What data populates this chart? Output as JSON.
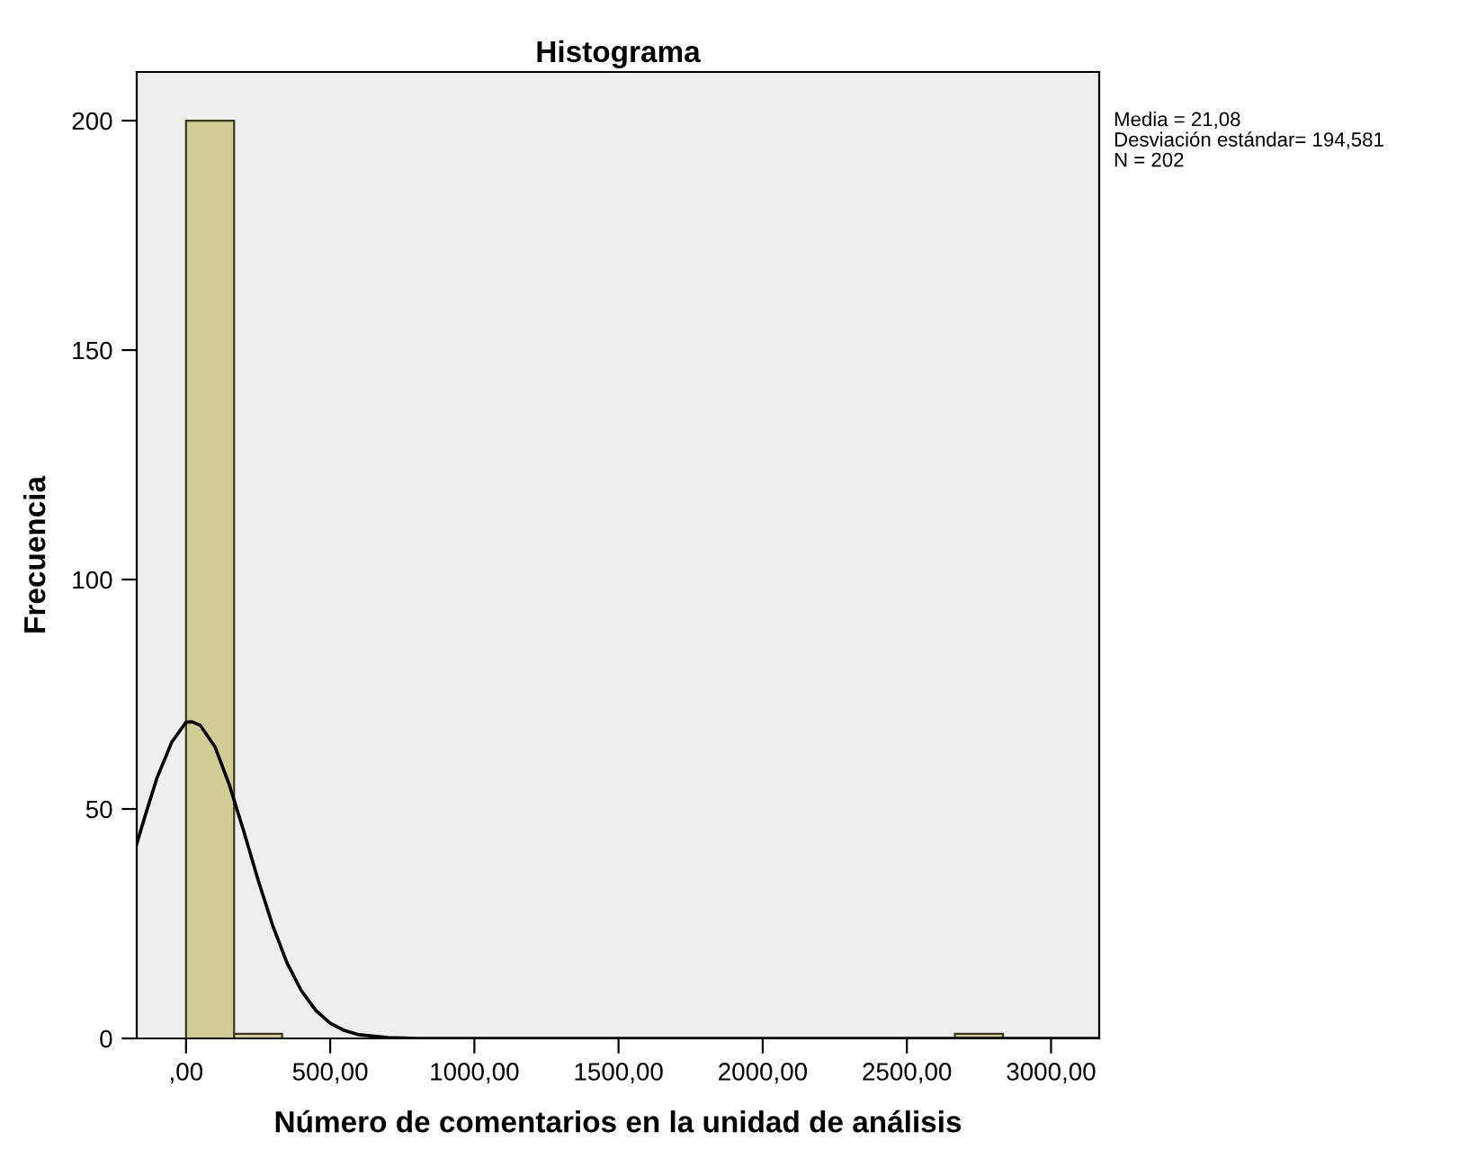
{
  "chart_data": {
    "type": "histogram",
    "title": "Histograma",
    "xlabel": "Número de comentarios en la unidad de análisis",
    "ylabel": "Frecuencia",
    "bins": [
      0,
      166.67,
      333.33,
      500,
      666.67,
      833.33,
      1000,
      1166.67,
      1333.33,
      1500,
      1666.67,
      1833.33,
      2000,
      2166.67,
      2333.33,
      2500,
      2666.67,
      2833.33
    ],
    "values": [
      200,
      1,
      0,
      0,
      0,
      0,
      0,
      0,
      0,
      0,
      0,
      0,
      0,
      0,
      0,
      0,
      1
    ],
    "color": "#d2cc96",
    "series": [
      {
        "type": "line",
        "color": "#000000",
        "x": [
          -171,
          -140,
          -100,
          -50,
          0,
          21,
          50,
          100,
          150,
          200,
          250,
          300,
          350,
          400,
          450,
          500,
          550,
          600,
          700,
          800,
          3167
        ],
        "values": [
          42.4,
          48.9,
          56.9,
          64.5,
          68.9,
          69,
          68.2,
          63.6,
          55.3,
          45.2,
          34.5,
          24.7,
          16.5,
          10.4,
          6.1,
          3.3,
          1.7,
          0.8,
          0.2,
          0,
          0
        ]
      }
    ],
    "xlim": [
      -171,
      3167
    ],
    "ylim": [
      0,
      210.6
    ],
    "xticks": [
      {
        "value": 0,
        "label": ",00"
      },
      {
        "value": 500,
        "label": "500,00"
      },
      {
        "value": 1000,
        "label": "1000,00"
      },
      {
        "value": 1500,
        "label": "1500,00"
      },
      {
        "value": 2000,
        "label": "2000,00"
      },
      {
        "value": 2500,
        "label": "2500,00"
      },
      {
        "value": 3000,
        "label": "3000,00"
      }
    ],
    "yticks": [
      0,
      50,
      100,
      150,
      200
    ],
    "grid": false,
    "legend": false,
    "annotations": [
      "Media = 21,08",
      "Desviación estándar= 194,581",
      "N = 202"
    ]
  }
}
